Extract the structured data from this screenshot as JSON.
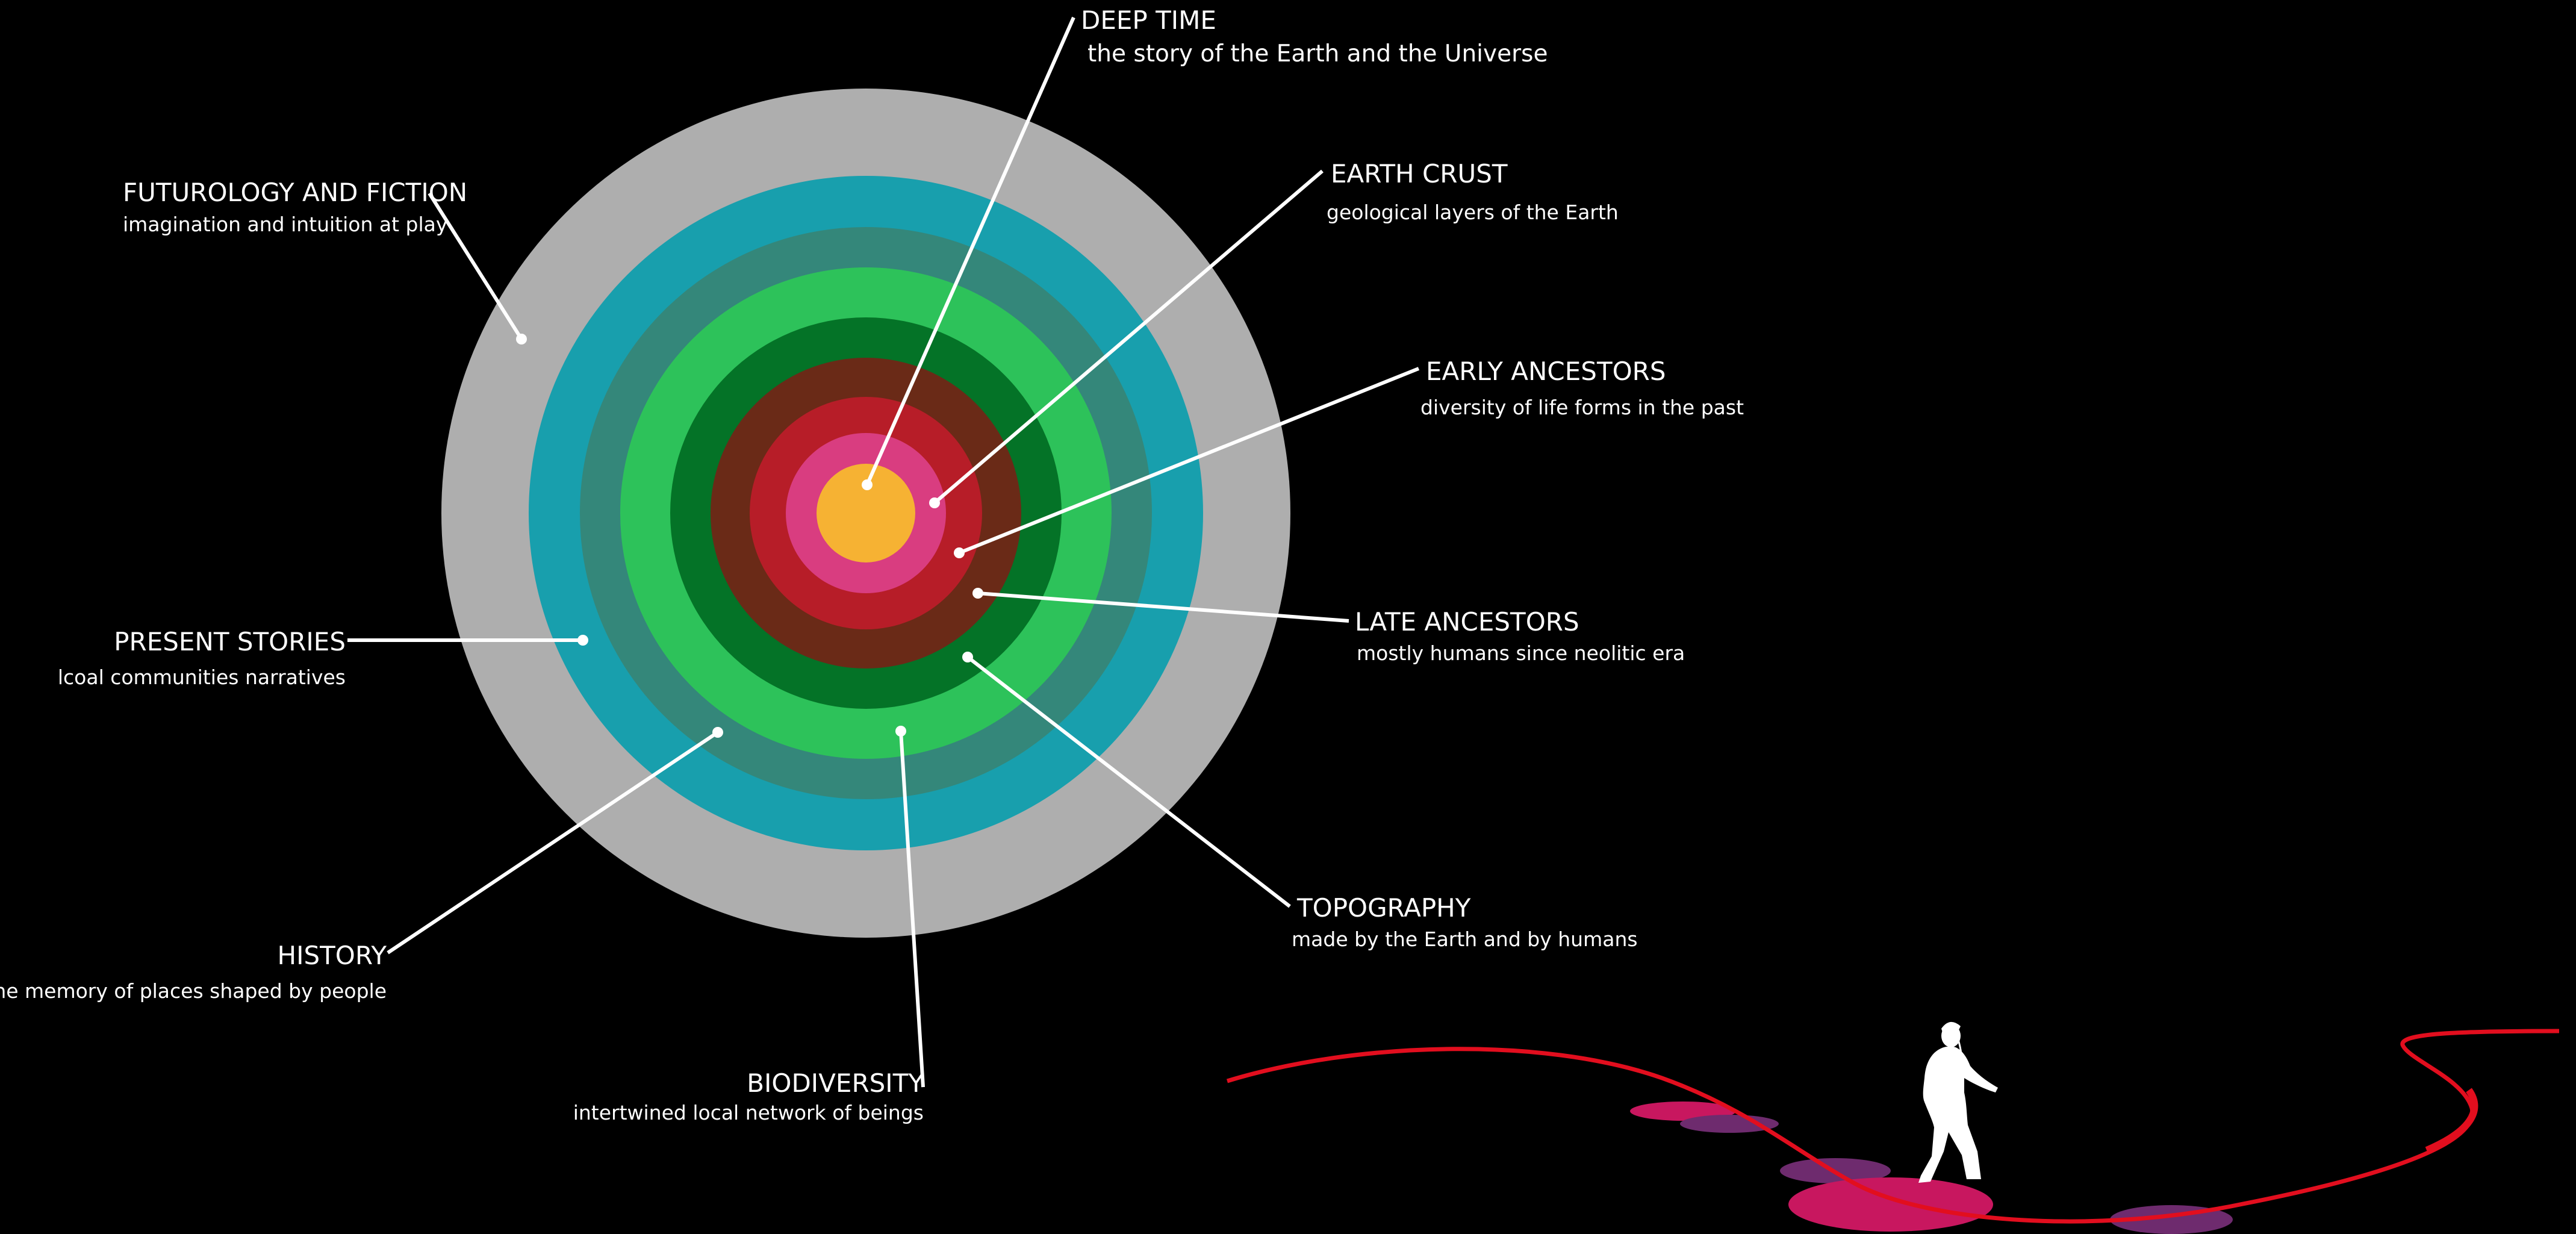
{
  "layers": [
    {
      "key": "futurology",
      "color": "#aeaeae"
    },
    {
      "key": "present_stories",
      "color": "#189fad"
    },
    {
      "key": "history",
      "color": "#34877a"
    },
    {
      "key": "biodiversity",
      "color": "#2dc25a"
    },
    {
      "key": "topography",
      "color": "#047327"
    },
    {
      "key": "late_ancestors",
      "color": "#6a2a17"
    },
    {
      "key": "early_ancestors",
      "color": "#b71d28"
    },
    {
      "key": "earth_crust",
      "color": "#d93d80"
    },
    {
      "key": "deep_time",
      "color": "#f6b233"
    }
  ],
  "labels": {
    "deep_time": {
      "title": "DEEP TIME",
      "subtitle": "the story of the Earth and the Universe"
    },
    "earth_crust": {
      "title": "EARTH CRUST",
      "subtitle": "geological layers of the Earth"
    },
    "early_ancestors": {
      "title": "EARLY ANCESTORS",
      "subtitle": "diversity of life forms in the past"
    },
    "late_ancestors": {
      "title": "LATE ANCESTORS",
      "subtitle": "mostly humans since neolitic era"
    },
    "topography": {
      "title": "TOPOGRAPHY",
      "subtitle": "made by the Earth and by humans"
    },
    "biodiversity": {
      "title": "BIODIVERSITY",
      "subtitle": "intertwined local network of beings"
    },
    "history": {
      "title": "HISTORY",
      "subtitle": "the memory of places shaped by people"
    },
    "present_stories": {
      "title": "PRESENT STORIES",
      "subtitle": "lcoal communities narratives"
    },
    "futurology": {
      "title": "FUTUROLOGY AND FICTION",
      "subtitle": "imagination and intuition at play"
    }
  },
  "path_colors": {
    "line": "#e20e1e",
    "stone_pink": "#c8175f",
    "stone_purple": "#6e2b6e"
  },
  "walker": {
    "icon": "walking-person-icon"
  }
}
